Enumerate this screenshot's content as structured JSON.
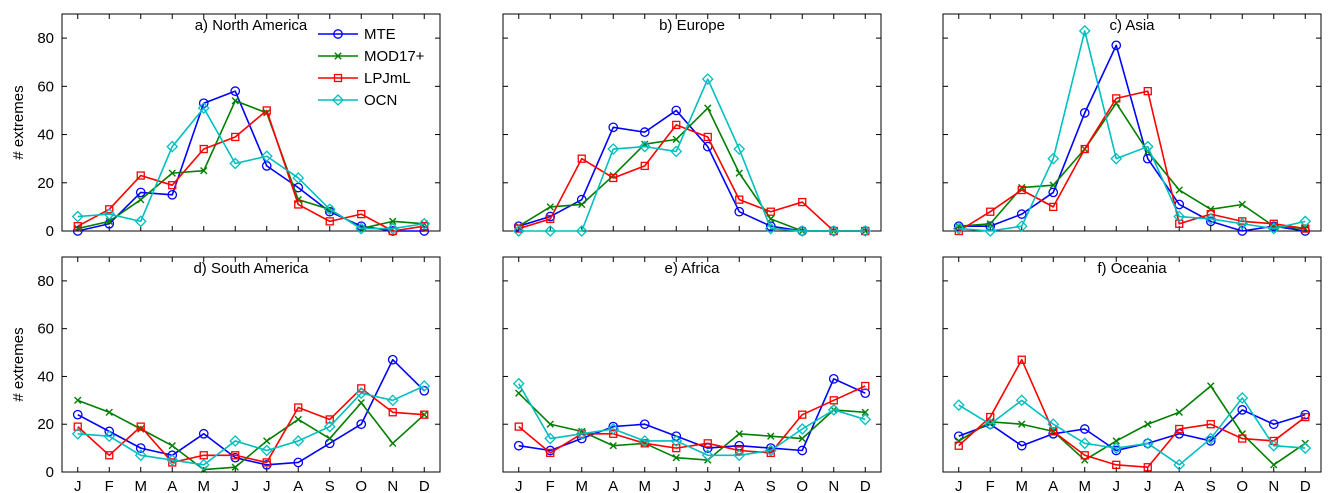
{
  "chart_data": {
    "type": "line",
    "ylabel": "# extremes",
    "ylim": [
      0,
      90
    ],
    "yticks": [
      "0",
      "20",
      "40",
      "60",
      "80"
    ],
    "categories": [
      "J",
      "F",
      "M",
      "A",
      "M",
      "J",
      "J",
      "A",
      "S",
      "O",
      "N",
      "D"
    ],
    "colors": {
      "MTE": "#0000ff",
      "MOD17+": "#007f00",
      "LPJmL": "#ff0000",
      "OCN": "#00bfbf"
    },
    "markers": {
      "MTE": "circle",
      "MOD17+": "x",
      "LPJmL": "square",
      "OCN": "diamond"
    },
    "legend": [
      "MTE",
      "MOD17+",
      "LPJmL",
      "OCN"
    ],
    "legend_placement": "inside top-right of first panel",
    "panels": [
      {
        "title": "a) North America",
        "series": [
          {
            "name": "MTE",
            "values": [
              0,
              3,
              16,
              15,
              53,
              58,
              27,
              18,
              8,
              2,
              0,
              0
            ]
          },
          {
            "name": "MOD17+",
            "values": [
              1,
              4,
              13,
              24,
              25,
              54,
              49,
              13,
              9,
              1,
              4,
              3
            ]
          },
          {
            "name": "LPJmL",
            "values": [
              2,
              9,
              23,
              19,
              34,
              39,
              50,
              11,
              4,
              7,
              0,
              2
            ]
          },
          {
            "name": "OCN",
            "values": [
              6,
              7,
              4,
              35,
              51,
              28,
              31,
              22,
              9,
              1,
              1,
              3
            ]
          }
        ]
      },
      {
        "title": "b) Europe",
        "series": [
          {
            "name": "MTE",
            "values": [
              2,
              6,
              13,
              43,
              41,
              50,
              35,
              8,
              2,
              0,
              0,
              0
            ]
          },
          {
            "name": "MOD17+",
            "values": [
              2,
              10,
              11,
              23,
              36,
              38,
              51,
              24,
              5,
              0,
              0,
              0
            ]
          },
          {
            "name": "LPJmL",
            "values": [
              1,
              5,
              30,
              22,
              27,
              44,
              39,
              13,
              8,
              12,
              0,
              0
            ]
          },
          {
            "name": "OCN",
            "values": [
              0,
              0,
              0,
              34,
              35,
              33,
              63,
              34,
              1,
              0,
              0,
              0
            ]
          }
        ]
      },
      {
        "title": "c) Asia",
        "series": [
          {
            "name": "MTE",
            "values": [
              2,
              2,
              7,
              16,
              49,
              77,
              30,
              11,
              4,
              0,
              2,
              0
            ]
          },
          {
            "name": "MOD17+",
            "values": [
              2,
              3,
              18,
              19,
              34,
              53,
              33,
              17,
              9,
              11,
              2,
              1
            ]
          },
          {
            "name": "LPJmL",
            "values": [
              0,
              8,
              17,
              10,
              34,
              55,
              58,
              3,
              7,
              4,
              3,
              1
            ]
          },
          {
            "name": "OCN",
            "values": [
              1,
              0,
              2,
              30,
              83,
              30,
              35,
              6,
              5,
              3,
              1,
              4
            ]
          }
        ]
      },
      {
        "title": "d) South America",
        "series": [
          {
            "name": "MTE",
            "values": [
              24,
              17,
              10,
              7,
              16,
              6,
              3,
              4,
              12,
              20,
              47,
              34
            ]
          },
          {
            "name": "MOD17+",
            "values": [
              30,
              25,
              18,
              11,
              1,
              2,
              13,
              22,
              14,
              29,
              12,
              24
            ]
          },
          {
            "name": "LPJmL",
            "values": [
              19,
              7,
              19,
              4,
              7,
              7,
              4,
              27,
              22,
              35,
              25,
              24
            ]
          },
          {
            "name": "OCN",
            "values": [
              16,
              15,
              7,
              5,
              3,
              13,
              9,
              13,
              19,
              33,
              30,
              36
            ]
          }
        ]
      },
      {
        "title": "e) Africa",
        "series": [
          {
            "name": "MTE",
            "values": [
              11,
              9,
              14,
              19,
              20,
              15,
              10,
              11,
              10,
              9,
              39,
              33
            ]
          },
          {
            "name": "MOD17+",
            "values": [
              33,
              20,
              17,
              11,
              12,
              6,
              5,
              16,
              15,
              14,
              26,
              25
            ]
          },
          {
            "name": "LPJmL",
            "values": [
              19,
              8,
              16,
              16,
              12,
              10,
              12,
              9,
              8,
              24,
              30,
              36
            ]
          },
          {
            "name": "OCN",
            "values": [
              37,
              14,
              16,
              18,
              13,
              13,
              7,
              7,
              9,
              18,
              26,
              22
            ]
          }
        ]
      },
      {
        "title": "f) Oceania",
        "series": [
          {
            "name": "MTE",
            "values": [
              15,
              20,
              11,
              16,
              18,
              9,
              12,
              16,
              13,
              26,
              20,
              24
            ]
          },
          {
            "name": "MOD17+",
            "values": [
              13,
              21,
              20,
              17,
              5,
              13,
              20,
              25,
              36,
              16,
              3,
              12
            ]
          },
          {
            "name": "LPJmL",
            "values": [
              11,
              23,
              47,
              17,
              7,
              3,
              2,
              18,
              20,
              14,
              13,
              23
            ]
          },
          {
            "name": "OCN",
            "values": [
              28,
              20,
              30,
              20,
              12,
              10,
              12,
              3,
              14,
              31,
              11,
              10
            ]
          }
        ]
      }
    ]
  }
}
